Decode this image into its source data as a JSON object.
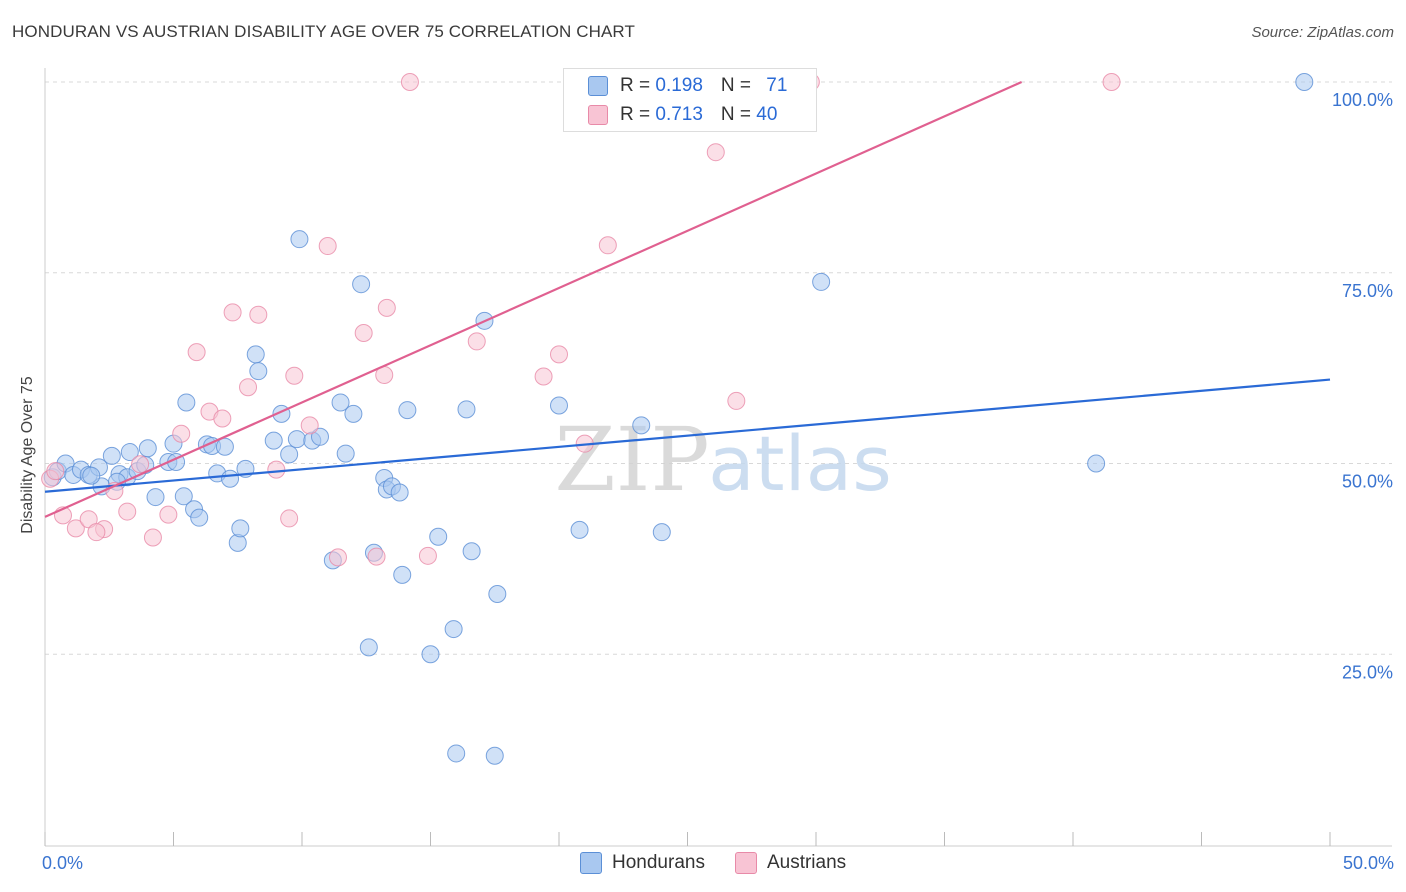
{
  "title": "HONDURAN VS AUSTRIAN DISABILITY AGE OVER 75 CORRELATION CHART",
  "source": "Source: ZipAtlas.com",
  "watermark": {
    "zip": "ZIP",
    "atlas": "atlas"
  },
  "legend": {
    "hondurans": {
      "r_label": "R = ",
      "r_value": "0.198",
      "n_label": "N = ",
      "n_value": "71"
    },
    "austrians": {
      "r_label": "R = ",
      "r_value": "0.713",
      "n_label": "N = ",
      "n_value": "40"
    }
  },
  "bottom_legend": {
    "hondurans": "Hondurans",
    "austrians": "Austrians"
  },
  "colors": {
    "hondurans_fill": "#a9c8f0",
    "hondurans_stroke": "#5b8fd6",
    "hondurans_line": "#2a6ad6",
    "austrians_fill": "#f8c4d4",
    "austrians_stroke": "#e88aa8",
    "austrians_line": "#e06090",
    "tick_label": "#3a74d0",
    "grid": "#d8d8d8"
  },
  "chart_data": {
    "type": "scatter",
    "title": "HONDURAN VS AUSTRIAN DISABILITY AGE OVER 75 CORRELATION CHART",
    "xlabel": "",
    "ylabel": "Disability Age Over 75",
    "xlim": [
      0,
      50
    ],
    "ylim": [
      0,
      103
    ],
    "x_tick_labels": [
      "0.0%",
      "50.0%"
    ],
    "y_ticks": [
      25,
      50,
      75,
      100
    ],
    "y_tick_labels": [
      "25.0%",
      "50.0%",
      "75.0%",
      "100.0%"
    ],
    "grid": true,
    "series": [
      {
        "name": "Hondurans",
        "trend": [
          [
            0,
            46.3
          ],
          [
            50,
            61.0
          ]
        ],
        "points": [
          [
            0.3,
            48.2
          ],
          [
            0.5,
            49.0
          ],
          [
            0.8,
            50.0
          ],
          [
            1.1,
            48.5
          ],
          [
            1.4,
            49.2
          ],
          [
            1.7,
            48.5
          ],
          [
            2.1,
            49.5
          ],
          [
            2.2,
            47.0
          ],
          [
            2.6,
            51.0
          ],
          [
            2.9,
            48.6
          ],
          [
            3.2,
            48.2
          ],
          [
            3.3,
            51.5
          ],
          [
            3.6,
            49.0
          ],
          [
            3.9,
            49.8
          ],
          [
            4.0,
            52.0
          ],
          [
            4.3,
            45.6
          ],
          [
            4.8,
            50.2
          ],
          [
            5.0,
            52.6
          ],
          [
            5.1,
            50.2
          ],
          [
            5.4,
            45.7
          ],
          [
            5.5,
            58.0
          ],
          [
            5.8,
            44.0
          ],
          [
            6.0,
            42.9
          ],
          [
            6.3,
            52.5
          ],
          [
            6.5,
            52.3
          ],
          [
            6.7,
            48.7
          ],
          [
            7.0,
            52.2
          ],
          [
            7.2,
            48.0
          ],
          [
            7.5,
            39.6
          ],
          [
            7.6,
            41.5
          ],
          [
            7.8,
            49.3
          ],
          [
            8.2,
            64.3
          ],
          [
            8.3,
            62.1
          ],
          [
            8.9,
            53.0
          ],
          [
            9.2,
            56.5
          ],
          [
            9.5,
            51.2
          ],
          [
            9.8,
            53.2
          ],
          [
            9.9,
            79.4
          ],
          [
            10.4,
            53.0
          ],
          [
            10.7,
            53.5
          ],
          [
            11.2,
            37.3
          ],
          [
            11.5,
            58.0
          ],
          [
            11.7,
            51.3
          ],
          [
            12.0,
            56.5
          ],
          [
            12.3,
            73.5
          ],
          [
            12.6,
            25.9
          ],
          [
            12.8,
            38.3
          ],
          [
            13.2,
            48.1
          ],
          [
            13.3,
            46.6
          ],
          [
            13.5,
            47.0
          ],
          [
            13.8,
            46.2
          ],
          [
            13.9,
            35.4
          ],
          [
            14.1,
            57.0
          ],
          [
            15.3,
            40.4
          ],
          [
            15.9,
            28.3
          ],
          [
            16.0,
            12.0
          ],
          [
            16.4,
            57.1
          ],
          [
            16.6,
            38.5
          ],
          [
            17.1,
            68.7
          ],
          [
            17.5,
            11.7
          ],
          [
            17.6,
            32.9
          ],
          [
            20.0,
            57.6
          ],
          [
            20.8,
            41.3
          ],
          [
            23.2,
            55.0
          ],
          [
            24.0,
            41.0
          ],
          [
            30.2,
            73.8
          ],
          [
            40.9,
            50.0
          ],
          [
            49.0,
            100.0
          ],
          [
            1.8,
            48.4
          ],
          [
            2.8,
            47.6
          ],
          [
            15.0,
            25.0
          ]
        ]
      },
      {
        "name": "Austrians",
        "trend": [
          [
            0,
            43.0
          ],
          [
            38,
            100.0
          ]
        ],
        "points": [
          [
            0.2,
            48.0
          ],
          [
            0.7,
            43.2
          ],
          [
            1.2,
            41.5
          ],
          [
            1.7,
            42.7
          ],
          [
            2.3,
            41.4
          ],
          [
            2.7,
            46.4
          ],
          [
            3.2,
            43.7
          ],
          [
            3.7,
            49.9
          ],
          [
            4.2,
            40.3
          ],
          [
            4.8,
            43.3
          ],
          [
            5.3,
            53.9
          ],
          [
            5.9,
            64.6
          ],
          [
            6.4,
            56.8
          ],
          [
            6.9,
            55.9
          ],
          [
            7.3,
            69.8
          ],
          [
            7.9,
            60.0
          ],
          [
            8.3,
            69.5
          ],
          [
            9.0,
            49.2
          ],
          [
            9.5,
            42.8
          ],
          [
            9.7,
            61.5
          ],
          [
            10.3,
            55.0
          ],
          [
            11.0,
            78.5
          ],
          [
            11.4,
            37.7
          ],
          [
            12.4,
            67.1
          ],
          [
            12.9,
            37.8
          ],
          [
            13.2,
            61.6
          ],
          [
            13.3,
            70.4
          ],
          [
            14.2,
            100.0
          ],
          [
            14.9,
            37.9
          ],
          [
            16.8,
            66.0
          ],
          [
            19.4,
            61.4
          ],
          [
            20.0,
            64.3
          ],
          [
            21.0,
            52.6
          ],
          [
            21.9,
            78.6
          ],
          [
            26.1,
            90.8
          ],
          [
            26.9,
            58.2
          ],
          [
            29.8,
            100.0
          ],
          [
            41.5,
            100.0
          ],
          [
            0.4,
            49.0
          ],
          [
            2.0,
            41.0
          ]
        ]
      }
    ]
  }
}
